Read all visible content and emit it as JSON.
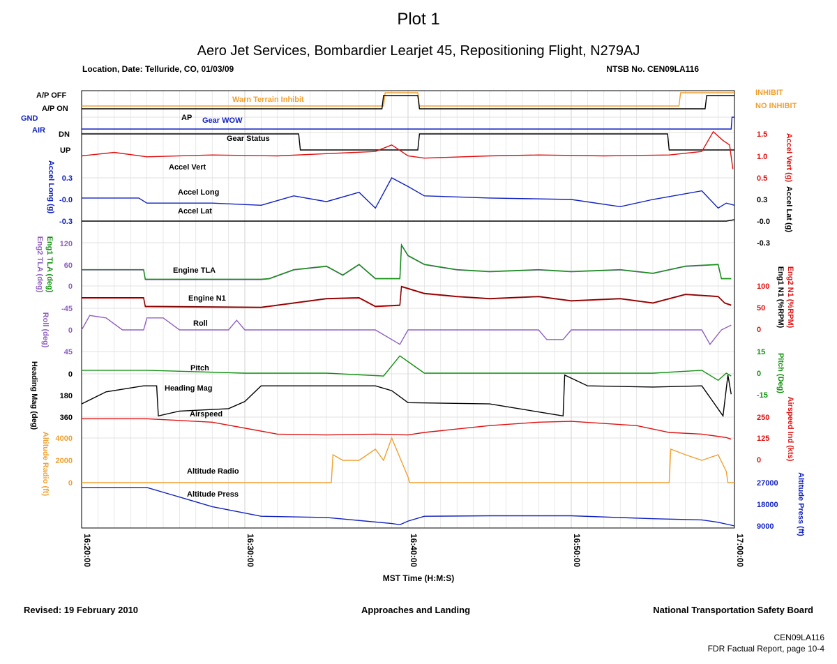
{
  "header": {
    "plot_label": "Plot 1",
    "title": "Aero Jet Services, Bombardier Learjet 45, Repositioning Flight, N279AJ",
    "location_date": "Location, Date: Telluride, CO, 01/03/09",
    "ntsb_no": "NTSB No. CEN09LA116"
  },
  "footer": {
    "revised": "Revised: 19 February 2010",
    "section": "Approaches and Landing",
    "organization": "National Transportation Safety Board",
    "doc_id": "CEN09LA116",
    "page_ref": "FDR Factual Report, page 10-4"
  },
  "colors": {
    "orange": "#f0a030",
    "blue": "#1020c0",
    "red": "#e01010",
    "green": "#109010",
    "purple": "#9060c0",
    "darkred": "#800000",
    "black": "#000000",
    "grid": "#d8d8d8"
  },
  "chart_data": {
    "type": "line",
    "x_axis": {
      "label": "MST Time (H:M:S)",
      "range": [
        "16:20:00",
        "17:00:00"
      ],
      "ticks": [
        "16:20:00",
        "16:30:00",
        "16:40:00",
        "16:50:00",
        "17:00:00"
      ]
    },
    "series": [
      {
        "name": "Warn Terrain Inhibit",
        "color": "orange",
        "right_axis_label": "",
        "right_ticks": [
          "INHIBIT",
          "NO INHIBIT"
        ],
        "x": [
          0,
          18.5,
          18.6,
          20.6,
          20.7,
          36.6,
          36.7,
          40
        ],
        "y": [
          "NO INHIBIT",
          "NO INHIBIT",
          "INHIBIT",
          "INHIBIT",
          "NO INHIBIT",
          "NO INHIBIT",
          "INHIBIT",
          "INHIBIT"
        ]
      },
      {
        "name": "AP",
        "color": "black",
        "left_ticks": [
          "A/P OFF",
          "A/P ON"
        ],
        "x": [
          0,
          18.4,
          18.5,
          20.6,
          20.7,
          38.2,
          38.3,
          40
        ],
        "y": [
          "A/P ON",
          "A/P ON",
          "A/P OFF",
          "A/P OFF",
          "A/P ON",
          "A/P ON",
          "A/P OFF",
          "A/P OFF"
        ]
      },
      {
        "name": "Gear WOW",
        "color": "blue",
        "left_ticks": [
          "GND",
          "AIR"
        ],
        "x": [
          0,
          39.8,
          39.85,
          40
        ],
        "y": [
          "AIR",
          "AIR",
          "GND",
          "GND"
        ]
      },
      {
        "name": "Gear Status",
        "color": "black",
        "left_ticks": [
          "DN",
          "UP"
        ],
        "x": [
          0,
          13.3,
          13.4,
          20.6,
          20.7,
          35.9,
          36.0,
          40
        ],
        "y": [
          "DN",
          "DN",
          "UP",
          "UP",
          "DN",
          "DN",
          "UP",
          "UP"
        ]
      },
      {
        "name": "Accel Vert",
        "color": "red",
        "right_axis_label": "Accel Vert (g)",
        "ticks": [
          "1.5",
          "1.0",
          "0.5"
        ],
        "x": [
          0,
          2,
          4,
          8,
          12,
          15,
          18,
          19,
          20,
          21,
          25,
          28,
          32,
          36,
          38,
          38.7,
          39.3,
          39.7,
          39.9
        ],
        "y": [
          1.0,
          1.08,
          0.98,
          1.02,
          1.0,
          1.05,
          1.1,
          1.25,
          1.0,
          0.95,
          1.0,
          1.02,
          1.0,
          1.02,
          1.1,
          1.55,
          1.35,
          1.25,
          0.7
        ]
      },
      {
        "name": "Accel Long",
        "color": "blue",
        "left_axis_label": "Accel Long (g)",
        "ticks": [
          "0.3",
          "-0.0",
          "-0.3"
        ],
        "x": [
          0,
          3.5,
          4,
          8,
          11,
          13,
          15,
          17,
          18,
          19,
          20,
          21,
          25,
          30,
          33,
          35,
          38,
          39,
          39.5,
          40
        ],
        "y": [
          0.02,
          0.02,
          -0.05,
          -0.05,
          -0.08,
          0.05,
          -0.03,
          0.1,
          -0.12,
          0.3,
          0.18,
          0.05,
          0.02,
          0.0,
          -0.1,
          0.0,
          0.12,
          -0.12,
          -0.05,
          -0.08
        ]
      },
      {
        "name": "Accel Lat",
        "color": "black",
        "right_axis_label": "Accel Lat (g)",
        "ticks": [
          "0.3",
          "-0.0",
          "-0.3"
        ],
        "x": [
          0,
          10,
          20,
          30,
          39.5,
          40
        ],
        "y": [
          0.0,
          0.0,
          0.0,
          0.0,
          0.0,
          0.02
        ]
      },
      {
        "name": "Engine TLA",
        "color": "green",
        "alt_color": "purple",
        "left_axis_label": "Eng1 TLA (deg)",
        "left_axis_label_2": "Eng2 TLA (deg)",
        "ticks": [
          "120",
          "60",
          "0"
        ],
        "x": [
          0,
          3.8,
          3.9,
          11,
          11.5,
          13,
          15,
          16,
          17,
          18,
          19.5,
          19.6,
          20,
          21,
          23,
          25,
          28,
          30,
          33,
          35,
          37,
          39,
          39.2,
          39.8
        ],
        "y": [
          45,
          45,
          18,
          18,
          20,
          45,
          55,
          30,
          60,
          20,
          20,
          115,
          85,
          60,
          45,
          40,
          45,
          40,
          45,
          35,
          55,
          60,
          20,
          20
        ]
      },
      {
        "name": "Engine N1",
        "color": "darkred",
        "alt_color": "red",
        "right_axis_label": "Eng2 N1 (%RPM)",
        "right_axis_label_2": "Eng1 N1 (%RPM)",
        "ticks": [
          "100",
          "50",
          "0"
        ],
        "x": [
          0,
          3.8,
          3.9,
          11,
          13,
          15,
          17,
          18,
          19.5,
          19.6,
          21,
          23,
          25,
          28,
          30,
          33,
          35,
          37,
          39,
          39.4,
          39.8
        ],
        "y": [
          72,
          72,
          52,
          50,
          60,
          70,
          72,
          52,
          55,
          98,
          82,
          75,
          70,
          75,
          65,
          70,
          60,
          80,
          75,
          60,
          55
        ]
      },
      {
        "name": "Roll",
        "color": "purple",
        "left_axis_label": "Roll (deg)",
        "ticks": [
          "-45",
          "0",
          "45"
        ],
        "x": [
          0,
          0.5,
          1.5,
          2.5,
          3.8,
          4,
          5,
          6,
          7,
          9,
          9.5,
          10,
          11,
          15,
          18,
          19.5,
          20,
          21,
          25,
          28,
          28.5,
          29.5,
          30,
          35,
          37,
          38,
          38.5,
          39.2,
          39.8
        ],
        "y": [
          0,
          -30,
          -25,
          0,
          0,
          -25,
          -25,
          0,
          0,
          0,
          -20,
          0,
          0,
          0,
          0,
          30,
          0,
          0,
          0,
          0,
          20,
          20,
          0,
          0,
          0,
          0,
          30,
          0,
          -10
        ]
      },
      {
        "name": "Pitch",
        "color": "green",
        "right_axis_label": "Pitch (Deg)",
        "ticks": [
          "15",
          "0",
          "-15"
        ],
        "x": [
          0,
          4,
          10,
          15,
          18.5,
          19.5,
          20,
          21,
          25,
          30,
          35,
          38,
          39,
          39.5,
          39.8
        ],
        "y": [
          2,
          2,
          0,
          0,
          -2,
          12,
          8,
          0,
          0,
          0,
          0,
          2,
          -5,
          0,
          -2
        ]
      },
      {
        "name": "Heading Mag",
        "color": "black",
        "left_axis_label": "Heading Mag (deg)",
        "ticks": [
          "0",
          "180",
          "360"
        ],
        "x": [
          0,
          1.5,
          3.8,
          4.6,
          4.7,
          6,
          9,
          10,
          11,
          15,
          18,
          19,
          20,
          25,
          29.5,
          29.6,
          31,
          35,
          38,
          39.3,
          39.6,
          39.8
        ],
        "y": [
          250,
          150,
          100,
          100,
          350,
          310,
          290,
          230,
          100,
          100,
          100,
          140,
          240,
          250,
          350,
          10,
          100,
          110,
          100,
          350,
          10,
          170
        ]
      },
      {
        "name": "Airspeed",
        "color": "red",
        "right_axis_label": "Airspeed Ind (kts)",
        "ticks": [
          "250",
          "125",
          "0"
        ],
        "x": [
          0,
          4,
          8,
          12,
          15,
          18,
          20,
          21,
          25,
          28,
          30,
          34,
          36,
          38,
          39.5,
          39.8
        ],
        "y": [
          240,
          240,
          220,
          150,
          145,
          150,
          145,
          160,
          200,
          220,
          225,
          200,
          160,
          150,
          130,
          120
        ]
      },
      {
        "name": "Altitude Radio",
        "color": "orange",
        "left_axis_label": "Altitude Radio (ft)",
        "ticks": [
          "4000",
          "2000",
          "0"
        ],
        "x": [
          0,
          15.3,
          15.4,
          16,
          17,
          18,
          18.5,
          19,
          20,
          20.1,
          36,
          36.1,
          37,
          38,
          39,
          39.5,
          39.6,
          40
        ],
        "y": [
          0,
          0,
          2500,
          2000,
          2000,
          3000,
          2000,
          4000,
          500,
          0,
          0,
          3000,
          2500,
          2000,
          2500,
          1000,
          0,
          0
        ]
      },
      {
        "name": "Altitude Press",
        "color": "blue",
        "right_axis_label": "Altitude Press (ft)",
        "ticks": [
          "27000",
          "18000",
          "9000"
        ],
        "x": [
          0,
          4,
          8,
          11,
          15,
          19,
          19.5,
          20,
          21,
          25,
          30,
          35,
          38,
          39,
          40
        ],
        "y": [
          25000,
          25000,
          17000,
          13000,
          12500,
          10000,
          9500,
          11000,
          13000,
          13200,
          13200,
          12000,
          11500,
          10500,
          9000
        ]
      }
    ]
  }
}
